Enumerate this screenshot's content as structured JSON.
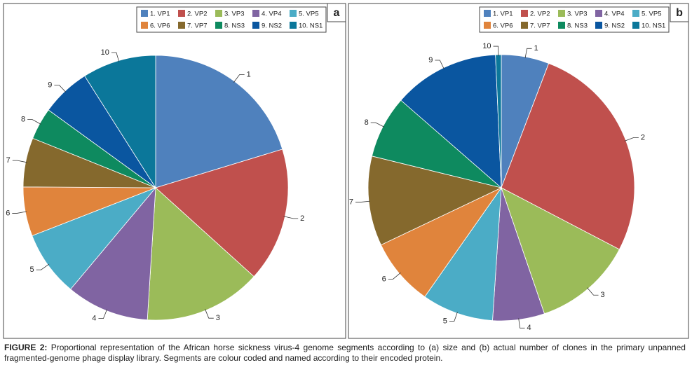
{
  "chart_data": [
    {
      "type": "pie",
      "panel": "a",
      "categories": [
        "1. VP1",
        "2. VP2",
        "3. VP3",
        "4. VP4",
        "5. VP5",
        "6. VP6",
        "7. VP7",
        "8. NS3",
        "9. NS2",
        "10. NS1"
      ],
      "labels": [
        "1",
        "2",
        "3",
        "4",
        "5",
        "6",
        "7",
        "8",
        "9",
        "10"
      ],
      "values": [
        20.3,
        16.4,
        14.3,
        10.1,
        8.0,
        6.0,
        6.0,
        3.9,
        6.0,
        9.0
      ],
      "colors": [
        "#4f81bd",
        "#c0504d",
        "#9bbb59",
        "#8064a2",
        "#4bacc6",
        "#e0843c",
        "#85692d",
        "#0e8a5f",
        "#0a56a0",
        "#0b779a"
      ]
    },
    {
      "type": "pie",
      "panel": "b",
      "categories": [
        "1. VP1",
        "2. VP2",
        "3. VP3",
        "4. VP4",
        "5. VP5",
        "6. VP6",
        "7. VP7",
        "8. NS3",
        "9. NS2",
        "10. NS1"
      ],
      "labels": [
        "1",
        "2",
        "3",
        "4",
        "5",
        "6",
        "7",
        "8",
        "9",
        "10"
      ],
      "values": [
        5.8,
        26.9,
        12.1,
        6.3,
        8.7,
        8.2,
        10.9,
        7.6,
        12.9,
        0.7
      ],
      "colors": [
        "#4f81bd",
        "#c0504d",
        "#9bbb59",
        "#8064a2",
        "#4bacc6",
        "#e0843c",
        "#85692d",
        "#0e8a5f",
        "#0a56a0",
        "#0b779a"
      ]
    }
  ],
  "caption": {
    "label": "FIGURE 2:",
    "text": "Proportional representation of the African horse sickness virus-4 genome segments according to (a) size and (b) actual number of clones in the primary unpanned fragmented-genome phage display library. Segments are colour coded and named according to their encoded protein."
  }
}
